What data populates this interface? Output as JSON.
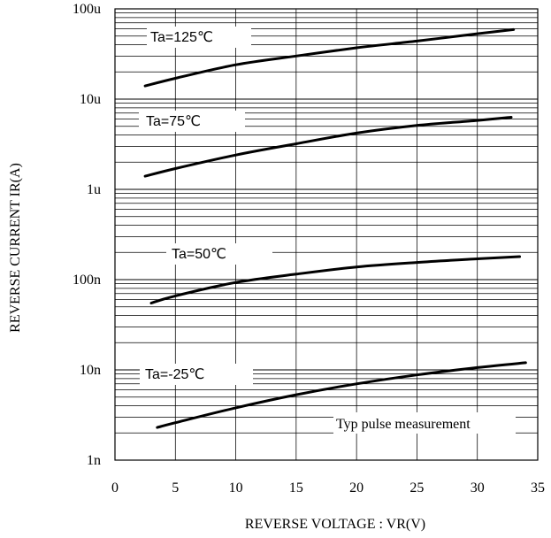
{
  "chart_data": {
    "type": "line",
    "xlabel": "REVERSE VOLTAGE : VR(V)",
    "ylabel": "REVERSE CURRENT    IR(A)",
    "xlim": [
      0,
      35
    ],
    "ylim": [
      1e-09,
      0.0001
    ],
    "yscale": "log",
    "grid": true,
    "x_ticks": [
      "0",
      "5",
      "10",
      "15",
      "20",
      "25",
      "30",
      "35"
    ],
    "y_ticks": [
      "1n",
      "10n",
      "100n",
      "1u",
      "10u",
      "100u"
    ],
    "annotation": "Typ pulse measurement",
    "series": [
      {
        "name": "Ta=125℃",
        "x": [
          2.5,
          5,
          10,
          15,
          20,
          25,
          30,
          33
        ],
        "y": [
          1.4e-05,
          1.7e-05,
          2.4e-05,
          3e-05,
          3.7e-05,
          4.4e-05,
          5.3e-05,
          5.9e-05
        ]
      },
      {
        "name": "Ta=75℃",
        "x": [
          2.5,
          5,
          10,
          15,
          20,
          25,
          30,
          32.8
        ],
        "y": [
          1.4e-06,
          1.7e-06,
          2.4e-06,
          3.2e-06,
          4.2e-06,
          5.1e-06,
          5.8e-06,
          6.3e-06
        ]
      },
      {
        "name": "Ta=50℃",
        "x": [
          3,
          5,
          10,
          15,
          20,
          25,
          30,
          33.5
        ],
        "y": [
          5.5e-08,
          6.6e-08,
          9.3e-08,
          1.15e-07,
          1.38e-07,
          1.55e-07,
          1.7e-07,
          1.8e-07
        ]
      },
      {
        "name": "Ta=-25℃",
        "x": [
          3.5,
          5,
          10,
          15,
          20,
          25,
          30,
          34
        ],
        "y": [
          2.3e-09,
          2.6e-09,
          3.8e-09,
          5.3e-09,
          7e-09,
          8.8e-09,
          1.06e-08,
          1.2e-08
        ]
      }
    ]
  }
}
